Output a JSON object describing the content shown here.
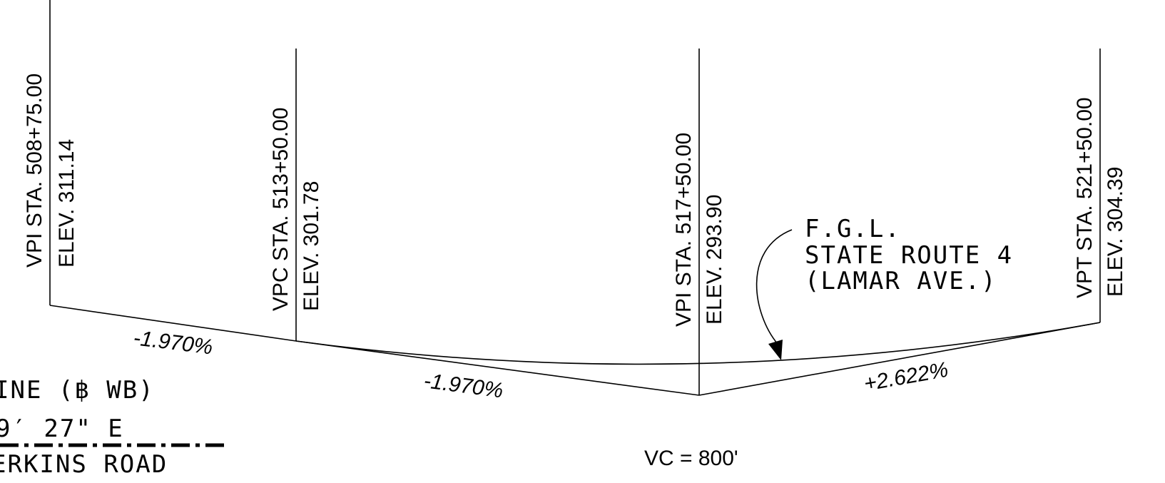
{
  "stations": [
    {
      "label": "VPI STA. 508+75.00",
      "elev": "ELEV. 311.14"
    },
    {
      "label": "VPC STA. 513+50.00",
      "elev": "ELEV. 301.78"
    },
    {
      "label": "VPI STA. 517+50.00",
      "elev": "ELEV. 293.90"
    },
    {
      "label": "VPT STA. 521+50.00",
      "elev": "ELEV. 304.39"
    }
  ],
  "grades": {
    "g1": "-1.970%",
    "g2": "-1.970%",
    "g3": "+2.622%"
  },
  "curve": {
    "vc": "VC = 800'"
  },
  "fgl_note": {
    "line1": "F.G.L.",
    "line2": "STATE ROUTE 4",
    "line3": "(LAMAR AVE.)"
  },
  "left_note": {
    "line1": "INE (฿  WB)",
    "line2": "9′ 27\" E",
    "line3": "ERKINS ROAD"
  }
}
